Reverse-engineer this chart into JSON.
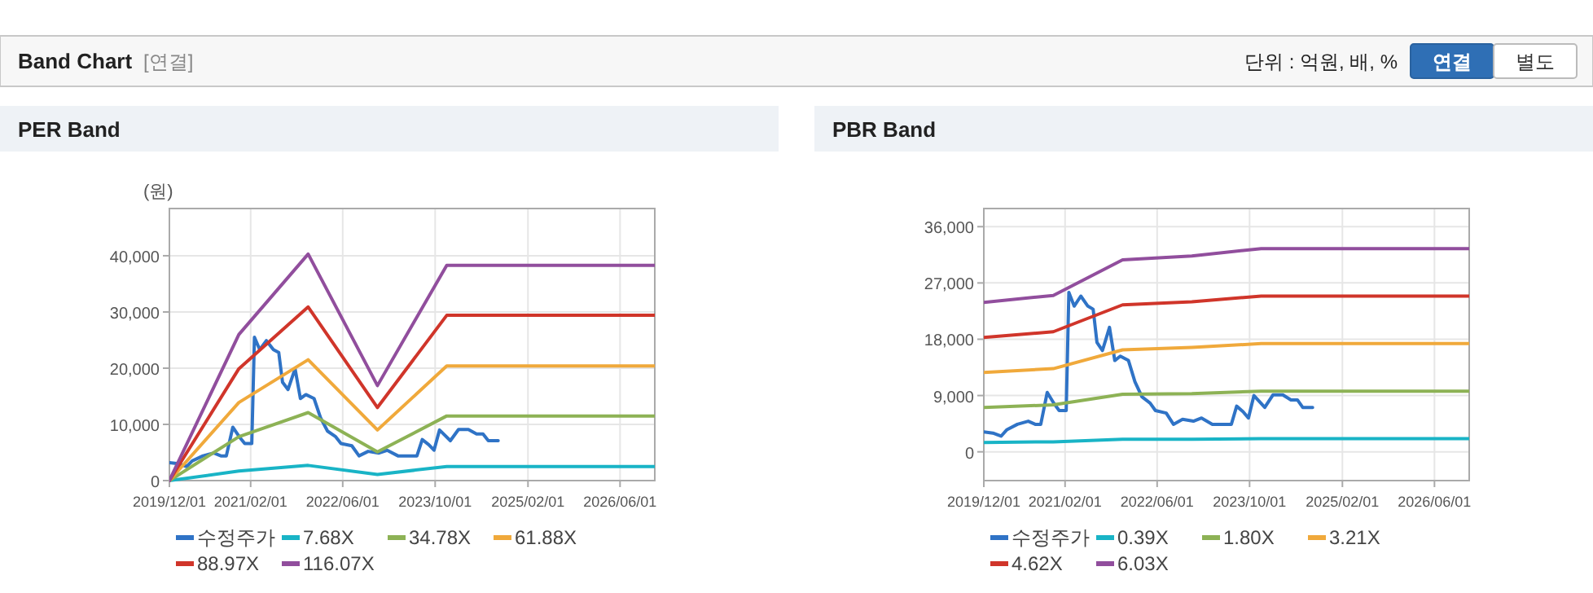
{
  "chart_data": [
    {
      "type": "other",
      "title": "Band Chart",
      "annotations": [
        "[연결]",
        "단위 : 억원, 배, %",
        "연결",
        "별도"
      ]
    },
    {
      "type": "line",
      "title": "PER Band",
      "ylabel": "(원)",
      "xlim": [
        "2019-12-01",
        "2026-12-01"
      ],
      "ylim": [
        0,
        48400
      ],
      "xticks": [
        {
          "value": "2019-12-01",
          "label": "2019/12/01"
        },
        {
          "value": "2021-02-01",
          "label": "2021/02/01"
        },
        {
          "value": "2022-06-01",
          "label": "2022/06/01"
        },
        {
          "value": "2023-10-01",
          "label": "2023/10/01"
        },
        {
          "value": "2025-02-01",
          "label": "2025/02/01"
        },
        {
          "value": "2026-06-01",
          "label": "2026/06/01"
        }
      ],
      "yticks": [
        0,
        {
          "value": 10000,
          "label": "10,000"
        },
        {
          "value": 20000,
          "label": "20,000"
        },
        {
          "value": 30000,
          "label": "30,000"
        },
        {
          "value": 40000,
          "label": "40,000"
        }
      ],
      "grid": true,
      "legend": "bottom",
      "series": [
        {
          "name": "수정주가",
          "color": "#2f73c6",
          "x": [
            "2019-12-01",
            "2020-01-18",
            "2020-03-01",
            "2020-03-30",
            "2020-05-26",
            "2020-07-22",
            "2020-08-28",
            "2020-09-26",
            "2020-10-30",
            "2020-12-03",
            "2021-01-01",
            "2021-02-07",
            "2021-02-21",
            "2021-03-21",
            "2021-04-25",
            "2021-06-01",
            "2021-06-29",
            "2021-07-19",
            "2021-08-17",
            "2021-09-23",
            "2021-10-21",
            "2021-11-19",
            "2022-01-01",
            "2022-02-04",
            "2022-03-13",
            "2022-04-25",
            "2022-05-23",
            "2022-07-19",
            "2022-08-26",
            "2022-10-13",
            "2022-12-09",
            "2023-01-21",
            "2023-03-19",
            "2023-06-27",
            "2023-07-25",
            "2023-08-28",
            "2023-09-25",
            "2023-10-24",
            "2023-12-20",
            "2024-02-01",
            "2024-03-24",
            "2024-05-06",
            "2024-06-09",
            "2024-07-07",
            "2024-08-28"
          ],
          "values": [
            3200,
            3000,
            2500,
            3500,
            4400,
            4900,
            4400,
            4400,
            9500,
            7800,
            6600,
            6600,
            25500,
            23300,
            24900,
            23300,
            22800,
            17500,
            16200,
            19900,
            14600,
            15300,
            14600,
            11200,
            8800,
            7800,
            6600,
            6200,
            4400,
            5200,
            4900,
            5400,
            4400,
            4400,
            7300,
            6400,
            5400,
            9000,
            7100,
            9100,
            9100,
            8300,
            8300,
            7100,
            7100
          ]
        },
        {
          "name": "7.68X",
          "color": "#19b4c6",
          "x": [
            "2019-12-01",
            "2020-12-01",
            "2021-12-01",
            "2022-12-01",
            "2023-12-01",
            "2026-12-01"
          ],
          "values": [
            0,
            1700,
            2700,
            1100,
            2500,
            2500
          ]
        },
        {
          "name": "34.78X",
          "color": "#8db255",
          "x": [
            "2019-12-01",
            "2020-12-01",
            "2021-12-01",
            "2022-12-01",
            "2023-12-01",
            "2026-12-01"
          ],
          "values": [
            0,
            7800,
            12100,
            5100,
            11500,
            11500
          ]
        },
        {
          "name": "61.88X",
          "color": "#f0a93b",
          "x": [
            "2019-12-01",
            "2020-12-01",
            "2021-12-01",
            "2022-12-01",
            "2023-12-01",
            "2026-12-01"
          ],
          "values": [
            0,
            13900,
            21500,
            9000,
            20400,
            20400
          ]
        },
        {
          "name": "88.97X",
          "color": "#d0352a",
          "x": [
            "2019-12-01",
            "2020-12-01",
            "2021-12-01",
            "2022-12-01",
            "2023-12-01",
            "2026-12-01"
          ],
          "values": [
            0,
            19900,
            30900,
            13000,
            29400,
            29400
          ]
        },
        {
          "name": "116.07X",
          "color": "#914e9d",
          "x": [
            "2019-12-01",
            "2020-12-01",
            "2021-12-01",
            "2022-12-01",
            "2023-12-01",
            "2026-12-01"
          ],
          "values": [
            0,
            26000,
            40300,
            16900,
            38300,
            38300
          ]
        }
      ]
    },
    {
      "type": "line",
      "title": "PBR Band",
      "xlim": [
        "2019-12-01",
        "2026-12-01"
      ],
      "ylim": [
        -4600,
        38900
      ],
      "xticks": [
        {
          "value": "2019-12-01",
          "label": "2019/12/01"
        },
        {
          "value": "2021-02-01",
          "label": "2021/02/01"
        },
        {
          "value": "2022-06-01",
          "label": "2022/06/01"
        },
        {
          "value": "2023-10-01",
          "label": "2023/10/01"
        },
        {
          "value": "2025-02-01",
          "label": "2025/02/01"
        },
        {
          "value": "2026-06-01",
          "label": "2026/06/01"
        }
      ],
      "yticks": [
        0,
        {
          "value": 9000,
          "label": "9,000"
        },
        {
          "value": 18000,
          "label": "18,000"
        },
        {
          "value": 27000,
          "label": "27,000"
        },
        {
          "value": 36000,
          "label": "36,000"
        }
      ],
      "grid": true,
      "legend": "bottom",
      "series": [
        {
          "name": "수정주가",
          "color": "#2f73c6",
          "x": [
            "2019-12-01",
            "2020-01-18",
            "2020-03-01",
            "2020-03-30",
            "2020-05-26",
            "2020-07-22",
            "2020-08-28",
            "2020-09-26",
            "2020-10-30",
            "2020-12-03",
            "2021-01-01",
            "2021-02-07",
            "2021-02-21",
            "2021-03-21",
            "2021-04-25",
            "2021-06-01",
            "2021-06-29",
            "2021-07-19",
            "2021-08-17",
            "2021-09-23",
            "2021-10-21",
            "2021-11-19",
            "2022-01-01",
            "2022-02-04",
            "2022-03-13",
            "2022-04-25",
            "2022-05-23",
            "2022-07-19",
            "2022-08-26",
            "2022-10-13",
            "2022-12-09",
            "2023-01-21",
            "2023-03-19",
            "2023-06-27",
            "2023-07-25",
            "2023-08-28",
            "2023-09-25",
            "2023-10-24",
            "2023-12-20",
            "2024-02-01",
            "2024-03-24",
            "2024-05-06",
            "2024-06-09",
            "2024-07-07",
            "2024-08-28"
          ],
          "values": [
            3200,
            3000,
            2500,
            3500,
            4400,
            4900,
            4400,
            4400,
            9500,
            7800,
            6600,
            6600,
            25500,
            23300,
            24900,
            23300,
            22800,
            17500,
            16200,
            19900,
            14600,
            15300,
            14600,
            11200,
            8800,
            7800,
            6600,
            6200,
            4400,
            5200,
            4900,
            5400,
            4400,
            4400,
            7300,
            6400,
            5400,
            9000,
            7100,
            9100,
            9100,
            8300,
            8300,
            7100,
            7100
          ]
        },
        {
          "name": "0.39X",
          "color": "#19b4c6",
          "x": [
            "2019-12-01",
            "2020-12-01",
            "2021-12-01",
            "2022-12-01",
            "2023-12-01",
            "2026-12-01"
          ],
          "values": [
            1500,
            1600,
            2000,
            2000,
            2100,
            2100
          ]
        },
        {
          "name": "1.80X",
          "color": "#8db255",
          "x": [
            "2019-12-01",
            "2020-12-01",
            "2021-12-01",
            "2022-12-01",
            "2023-12-01",
            "2026-12-01"
          ],
          "values": [
            7100,
            7500,
            9200,
            9300,
            9700,
            9700
          ]
        },
        {
          "name": "3.21X",
          "color": "#f0a93b",
          "x": [
            "2019-12-01",
            "2020-12-01",
            "2021-12-01",
            "2022-12-01",
            "2023-12-01",
            "2026-12-01"
          ],
          "values": [
            12700,
            13300,
            16300,
            16700,
            17300,
            17300
          ]
        },
        {
          "name": "4.62X",
          "color": "#d0352a",
          "x": [
            "2019-12-01",
            "2020-12-01",
            "2021-12-01",
            "2022-12-01",
            "2023-12-01",
            "2026-12-01"
          ],
          "values": [
            18300,
            19200,
            23500,
            24000,
            24900,
            24900
          ]
        },
        {
          "name": "6.03X",
          "color": "#914e9d",
          "x": [
            "2019-12-01",
            "2020-12-01",
            "2021-12-01",
            "2022-12-01",
            "2023-12-01",
            "2026-12-01"
          ],
          "values": [
            23900,
            25000,
            30700,
            31300,
            32500,
            32500
          ]
        }
      ]
    }
  ]
}
